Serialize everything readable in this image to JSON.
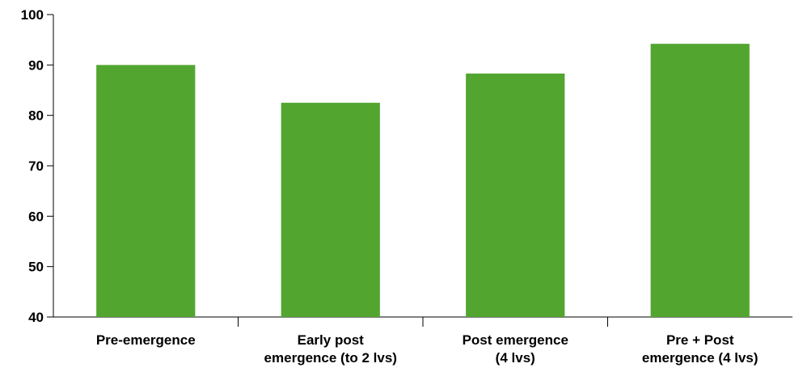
{
  "chart_data": {
    "type": "bar",
    "title": "",
    "xlabel": "",
    "ylabel": "",
    "categories": [
      [
        "Pre-emergence"
      ],
      [
        "Early post",
        "emergence (to 2 lvs)"
      ],
      [
        "Post emergence",
        "(4 lvs)"
      ],
      [
        "Pre + Post",
        "emergence (4 lvs)"
      ]
    ],
    "values": [
      90,
      82.5,
      88.3,
      94.2
    ],
    "ylim": [
      40,
      100
    ],
    "yticks": [
      "40",
      "50",
      "60",
      "70",
      "80",
      "90",
      "100"
    ],
    "bar_color": "#52a630",
    "axis_color": "#000000",
    "grid": false,
    "legend": "none"
  }
}
